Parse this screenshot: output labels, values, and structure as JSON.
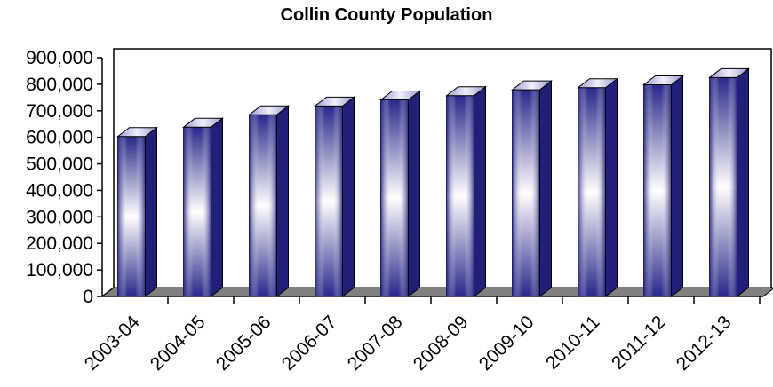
{
  "chart_data": {
    "type": "bar",
    "title": "Collin County Population",
    "xlabel": "",
    "ylabel": "",
    "categories": [
      "2003-04",
      "2004-05",
      "2005-06",
      "2006-07",
      "2007-08",
      "2008-09",
      "2009-10",
      "2010-11",
      "2011-12",
      "2012-13"
    ],
    "values": [
      603000,
      638000,
      685000,
      718000,
      741000,
      757000,
      779000,
      787000,
      798000,
      825000
    ],
    "ylim": [
      0,
      900000
    ],
    "y_ticks": [
      "0",
      "100,000",
      "200,000",
      "300,000",
      "400,000",
      "500,000",
      "600,000",
      "700,000",
      "800,000",
      "900,000"
    ],
    "grid": false,
    "legend": "none",
    "style": "3d",
    "colors": {
      "bar_edge": "#1a1a6e",
      "bar_dark": "#28288a",
      "bar_light": "#ffffff",
      "bar_side": "#202078",
      "bar_top": "#c8c8e6",
      "floor": "#808080"
    }
  }
}
